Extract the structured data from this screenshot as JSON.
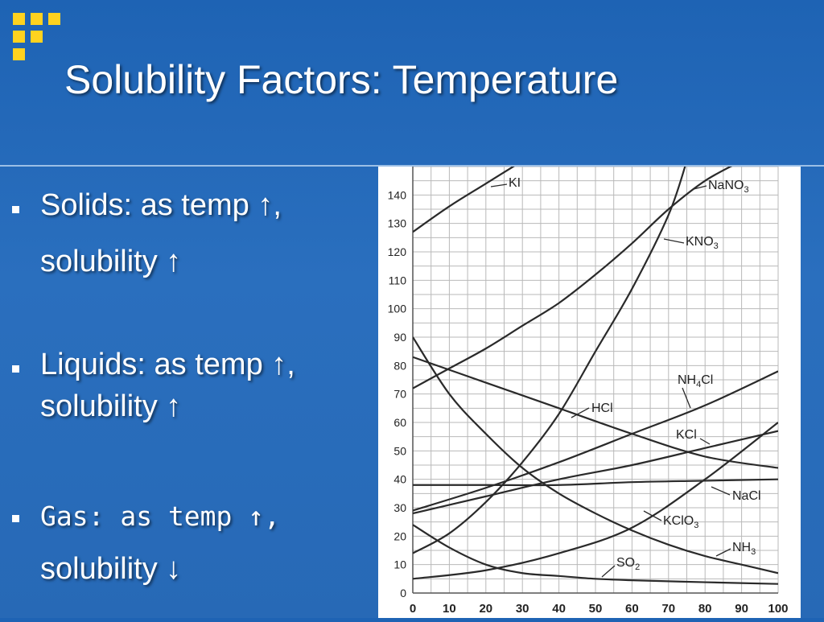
{
  "slide": {
    "title": "Solubility Factors: Temperature",
    "bullets": [
      {
        "line1": "Solids: as temp ↑,",
        "line2": "solubility ↑"
      },
      {
        "line1": "Liquids: as temp ↑,",
        "line2": "solubility ↑"
      },
      {
        "line1": "Gas: as temp ↑,",
        "line2": "solubility ↓"
      }
    ]
  },
  "colors": {
    "background": "#1e63b4",
    "logo": "#ffd21f",
    "text": "#ffffff",
    "chart_line": "#2a2a2a"
  },
  "chart_data": {
    "type": "line",
    "xlim": [
      0,
      100
    ],
    "ylim": [
      0,
      150
    ],
    "x_ticks": [
      0,
      10,
      20,
      30,
      40,
      50,
      60,
      70,
      80,
      90,
      100
    ],
    "y_ticks": [
      0,
      10,
      20,
      30,
      40,
      50,
      60,
      70,
      80,
      90,
      100,
      110,
      120,
      130,
      140
    ],
    "grid": true,
    "series": [
      {
        "name": "KI",
        "subscript": "",
        "points": [
          [
            0,
            127
          ],
          [
            10,
            136
          ],
          [
            20,
            144
          ],
          [
            30,
            152
          ]
        ]
      },
      {
        "name": "NaNO",
        "subscript": "3",
        "points": [
          [
            0,
            72
          ],
          [
            10,
            79
          ],
          [
            20,
            86
          ],
          [
            30,
            94
          ],
          [
            40,
            102
          ],
          [
            50,
            112
          ],
          [
            60,
            123
          ],
          [
            70,
            135
          ],
          [
            80,
            145
          ],
          [
            90,
            152
          ]
        ]
      },
      {
        "name": "KNO",
        "subscript": "3",
        "points": [
          [
            0,
            14
          ],
          [
            10,
            21
          ],
          [
            20,
            32
          ],
          [
            30,
            46
          ],
          [
            40,
            63
          ],
          [
            50,
            85
          ],
          [
            60,
            107
          ],
          [
            70,
            133
          ],
          [
            75,
            152
          ]
        ]
      },
      {
        "name": "HCl",
        "subscript": "",
        "points": [
          [
            0,
            83
          ],
          [
            20,
            74
          ],
          [
            40,
            65
          ],
          [
            60,
            56
          ],
          [
            80,
            48
          ],
          [
            100,
            44
          ]
        ]
      },
      {
        "name": "NH4Cl",
        "subscript": "",
        "points": [
          [
            0,
            29
          ],
          [
            20,
            37
          ],
          [
            40,
            46
          ],
          [
            60,
            56
          ],
          [
            80,
            66
          ],
          [
            100,
            78
          ]
        ]
      },
      {
        "name": "KCl",
        "subscript": "",
        "points": [
          [
            0,
            28
          ],
          [
            20,
            34
          ],
          [
            40,
            40
          ],
          [
            60,
            45
          ],
          [
            80,
            51
          ],
          [
            100,
            57
          ]
        ]
      },
      {
        "name": "NaCl",
        "subscript": "",
        "points": [
          [
            0,
            38
          ],
          [
            20,
            38
          ],
          [
            40,
            38
          ],
          [
            60,
            39
          ],
          [
            80,
            39.5
          ],
          [
            100,
            40
          ]
        ]
      },
      {
        "name": "KClO",
        "subscript": "3",
        "points": [
          [
            0,
            5
          ],
          [
            20,
            8
          ],
          [
            40,
            14
          ],
          [
            60,
            23
          ],
          [
            80,
            40
          ],
          [
            100,
            60
          ]
        ]
      },
      {
        "name": "NH",
        "subscript": "3",
        "points": [
          [
            0,
            90
          ],
          [
            10,
            70
          ],
          [
            20,
            56
          ],
          [
            30,
            44
          ],
          [
            40,
            35
          ],
          [
            50,
            28
          ],
          [
            60,
            22
          ],
          [
            70,
            17
          ],
          [
            80,
            13
          ],
          [
            90,
            10
          ],
          [
            100,
            7
          ]
        ]
      },
      {
        "name": "SO",
        "subscript": "2",
        "points": [
          [
            0,
            24
          ],
          [
            10,
            16
          ],
          [
            20,
            10
          ],
          [
            30,
            7
          ],
          [
            40,
            6
          ],
          [
            50,
            5
          ],
          [
            60,
            4.5
          ],
          [
            80,
            3.8
          ],
          [
            100,
            3.2
          ]
        ]
      }
    ],
    "labels": [
      {
        "text": "KI",
        "sub": ""
      },
      {
        "text": "NaNO",
        "sub": "3"
      },
      {
        "text": "KNO",
        "sub": "3"
      },
      {
        "text": "HCl",
        "sub": ""
      },
      {
        "text": "NH",
        "sub": "4",
        "after": "Cl"
      },
      {
        "text": "KCl",
        "sub": ""
      },
      {
        "text": "NaCl",
        "sub": ""
      },
      {
        "text": "KClO",
        "sub": "3"
      },
      {
        "text": "NH",
        "sub": "3"
      },
      {
        "text": "SO",
        "sub": "2"
      }
    ]
  }
}
